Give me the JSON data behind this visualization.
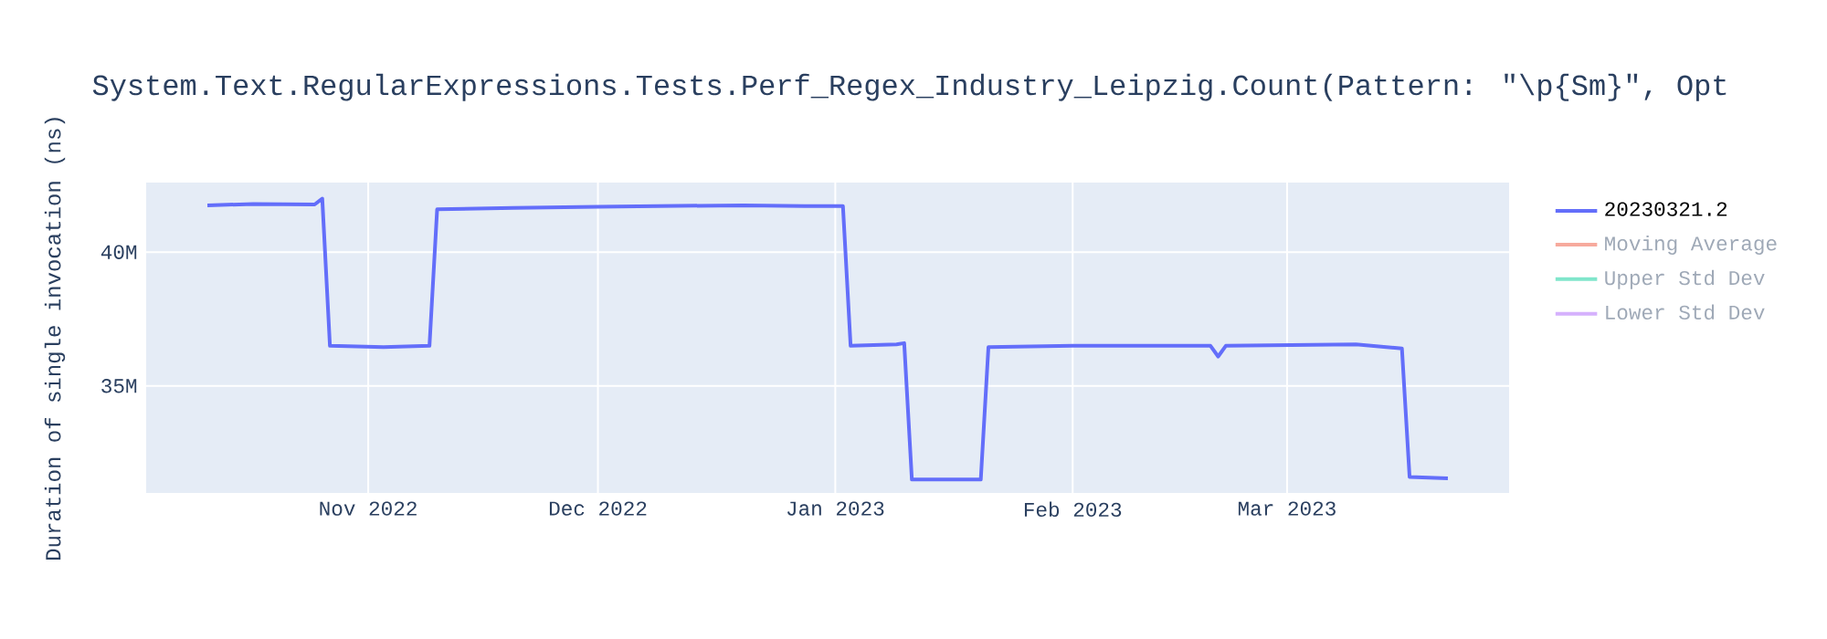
{
  "chart_data": {
    "type": "line",
    "title": "System.Text.RegularExpressions.Tests.Perf_Regex_Industry_Leipzig.Count(Pattern: \"\\p{Sm}\", Opt",
    "ylabel": "Duration of single invocation (ns)",
    "x": [
      "2022-10-11",
      "2022-10-17",
      "2022-10-25",
      "2022-10-26",
      "2022-10-27",
      "2022-11-03",
      "2022-11-09",
      "2022-11-10",
      "2022-11-20",
      "2022-12-01",
      "2022-12-20",
      "2022-12-28",
      "2023-01-02",
      "2023-01-03",
      "2023-01-09",
      "2023-01-10",
      "2023-01-11",
      "2023-01-20",
      "2023-01-21",
      "2023-02-01",
      "2023-02-19",
      "2023-02-20",
      "2023-02-21",
      "2023-03-10",
      "2023-03-16",
      "2023-03-17",
      "2023-03-22"
    ],
    "series": [
      {
        "name": "20230321.2",
        "color": "#636efa",
        "values": [
          41750000,
          41800000,
          41780000,
          42000000,
          36500000,
          36450000,
          36500000,
          41600000,
          41650000,
          41700000,
          41750000,
          41720000,
          41720000,
          36500000,
          36550000,
          36600000,
          31500000,
          31500000,
          36450000,
          36500000,
          36500000,
          36100000,
          36500000,
          36550000,
          36400000,
          31600000,
          31550000
        ]
      },
      {
        "name": "Moving Average",
        "color": "#f7aa9d",
        "values": [
          null,
          null,
          null,
          null,
          null,
          null,
          null,
          null,
          null,
          null,
          null,
          null,
          null,
          null,
          null,
          null,
          null,
          null,
          null,
          null,
          null,
          null,
          null,
          null,
          null,
          null,
          null
        ]
      },
      {
        "name": "Upper Std Dev",
        "color": "#80e6cb",
        "values": [
          null,
          null,
          null,
          null,
          null,
          null,
          null,
          null,
          null,
          null,
          null,
          null,
          null,
          null,
          null,
          null,
          null,
          null,
          null,
          null,
          null,
          null,
          null,
          null,
          null,
          null,
          null
        ]
      },
      {
        "name": "Lower Std Dev",
        "color": "#d5b1fd",
        "values": [
          null,
          null,
          null,
          null,
          null,
          null,
          null,
          null,
          null,
          null,
          null,
          null,
          null,
          null,
          null,
          null,
          null,
          null,
          null,
          null,
          null,
          null,
          null,
          null,
          null,
          null,
          null
        ]
      }
    ],
    "xlim": [
      "2022-10-03",
      "2023-03-30"
    ],
    "xticks": [
      {
        "value": "2022-11-01",
        "label": "Nov 2022"
      },
      {
        "value": "2022-12-01",
        "label": "Dec 2022"
      },
      {
        "value": "2023-01-01",
        "label": "Jan 2023"
      },
      {
        "value": "2023-02-01",
        "label": "Feb 2023"
      },
      {
        "value": "2023-03-01",
        "label": "Mar 2023"
      }
    ],
    "ylim": [
      31000000,
      42600000
    ],
    "yticks": [
      {
        "value": 35000000,
        "label": "35M"
      },
      {
        "value": 40000000,
        "label": "40M"
      }
    ],
    "grid": true,
    "legend": "top right",
    "marker": "none",
    "line_style": "solid"
  }
}
